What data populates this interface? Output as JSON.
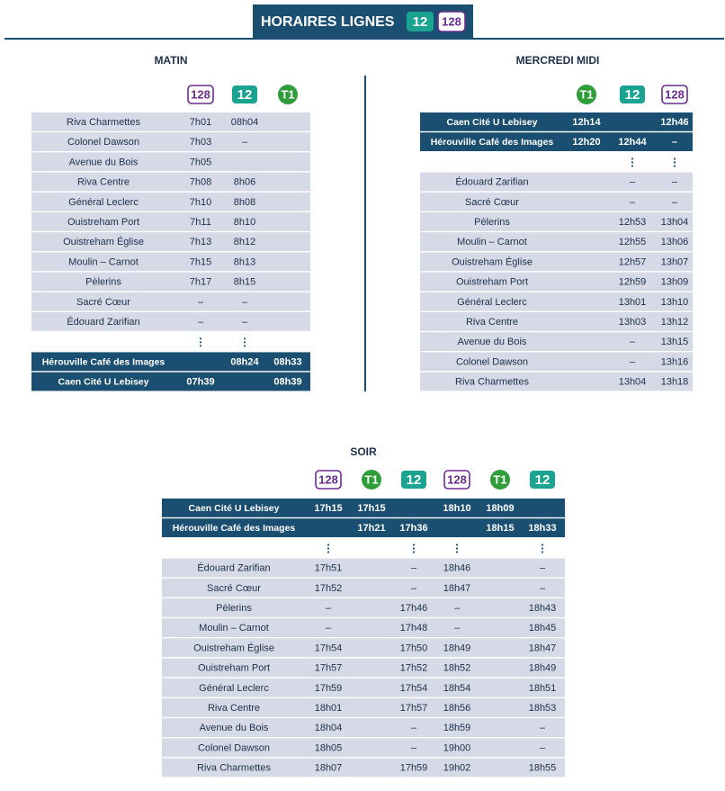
{
  "header": {
    "title": "HORAIRES LIGNES",
    "lines": [
      {
        "label": "12",
        "color": "#1aa391",
        "style": "filled"
      },
      {
        "label": "128",
        "color": "#6b2c8f",
        "style": "outline"
      }
    ]
  },
  "tables": [
    {
      "title": "MATIN",
      "lines": [
        {
          "label": "128",
          "color": "#6b2c8f",
          "style": "outline"
        },
        {
          "label": "12",
          "color": "#1aa391",
          "style": "filled"
        },
        {
          "label": "T1",
          "color": "#2f9e3a",
          "style": "circle"
        }
      ],
      "stops": [
        {
          "stop": "Riva Charmettes",
          "times": [
            "7h01",
            "08h04",
            null
          ]
        },
        {
          "stop": "Colonel Dawson",
          "times": [
            "7h03",
            "–",
            null
          ]
        },
        {
          "stop": "Avenue du Bois",
          "times": [
            "7h05",
            null,
            null
          ]
        },
        {
          "stop": "Riva Centre",
          "times": [
            "7h08",
            "8h06",
            null
          ]
        },
        {
          "stop": "Général Leclerc",
          "times": [
            "7h10",
            "8h08",
            null
          ]
        },
        {
          "stop": "Ouistreham Port",
          "times": [
            "7h11",
            "8h10",
            null
          ]
        },
        {
          "stop": "Ouistreham Église",
          "times": [
            "7h13",
            "8h12",
            null
          ]
        },
        {
          "stop": "Moulin – Carnot",
          "times": [
            "7h15",
            "8h13",
            null
          ]
        },
        {
          "stop": "Pèlerins",
          "times": [
            "7h17",
            "8h15",
            null
          ]
        },
        {
          "stop": "Sacré Cœur",
          "times": [
            "–",
            "–",
            null
          ]
        },
        {
          "stop": "Édouard Zarifian",
          "times": [
            "–",
            "–",
            null
          ]
        }
      ],
      "termini": [
        {
          "stop": "Hérouville Café des Images",
          "times": [
            null,
            "08h24",
            "08h33"
          ]
        },
        {
          "stop": "Caen Cité U Lebisey",
          "times": [
            "07h39",
            null,
            "08h39"
          ]
        }
      ]
    },
    {
      "title": "MERCREDI MIDI",
      "lines": [
        {
          "label": "T1",
          "color": "#2f9e3a",
          "style": "circle"
        },
        {
          "label": "12",
          "color": "#1aa391",
          "style": "filled"
        },
        {
          "label": "128",
          "color": "#6b2c8f",
          "style": "outline"
        }
      ],
      "termini": [
        {
          "stop": "Caen Cité U Lebisey",
          "times": [
            "12h14",
            null,
            "12h46"
          ]
        },
        {
          "stop": "Hérouville Café des Images",
          "times": [
            "12h20",
            "12h44",
            "–"
          ]
        }
      ],
      "stops": [
        {
          "stop": "Édouard Zarifian",
          "times": [
            null,
            "–",
            "–"
          ]
        },
        {
          "stop": "Sacré Cœur",
          "times": [
            null,
            "–",
            "–"
          ]
        },
        {
          "stop": "Pèlerins",
          "times": [
            null,
            "12h53",
            "13h04"
          ]
        },
        {
          "stop": "Moulin – Carnot",
          "times": [
            null,
            "12h55",
            "13h06"
          ]
        },
        {
          "stop": "Ouistreham Église",
          "times": [
            null,
            "12h57",
            "13h07"
          ]
        },
        {
          "stop": "Ouistreham Port",
          "times": [
            null,
            "12h59",
            "13h09"
          ]
        },
        {
          "stop": "Général Leclerc",
          "times": [
            null,
            "13h01",
            "13h10"
          ]
        },
        {
          "stop": "Riva Centre",
          "times": [
            null,
            "13h03",
            "13h12"
          ]
        },
        {
          "stop": "Avenue du Bois",
          "times": [
            null,
            "–",
            "13h15"
          ]
        },
        {
          "stop": "Colonel Dawson",
          "times": [
            null,
            "–",
            "13h16"
          ]
        },
        {
          "stop": "Riva Charmettes",
          "times": [
            null,
            "13h04",
            "13h18"
          ]
        }
      ]
    },
    {
      "title": "SOIR",
      "lines": [
        {
          "label": "128",
          "color": "#6b2c8f",
          "style": "outline"
        },
        {
          "label": "T1",
          "color": "#2f9e3a",
          "style": "circle"
        },
        {
          "label": "12",
          "color": "#1aa391",
          "style": "filled"
        },
        {
          "label": "128",
          "color": "#6b2c8f",
          "style": "outline"
        },
        {
          "label": "T1",
          "color": "#2f9e3a",
          "style": "circle"
        },
        {
          "label": "12",
          "color": "#1aa391",
          "style": "filled"
        }
      ],
      "termini": [
        {
          "stop": "Caen Cité U Lebisey",
          "times": [
            "17h15",
            "17h15",
            null,
            "18h10",
            "18h09",
            null
          ]
        },
        {
          "stop": "Hérouville Café des Images",
          "times": [
            null,
            "17h21",
            "17h36",
            null,
            "18h15",
            "18h33"
          ]
        }
      ],
      "stops": [
        {
          "stop": "Édouard Zarifian",
          "times": [
            "17h51",
            null,
            "–",
            "18h46",
            null,
            "–"
          ]
        },
        {
          "stop": "Sacré Cœur",
          "times": [
            "17h52",
            null,
            "–",
            "18h47",
            null,
            "–"
          ]
        },
        {
          "stop": "Pèlerins",
          "times": [
            "–",
            null,
            "17h46",
            "–",
            null,
            "18h43"
          ]
        },
        {
          "stop": "Moulin – Carnot",
          "times": [
            "–",
            null,
            "17h48",
            "–",
            null,
            "18h45"
          ]
        },
        {
          "stop": "Ouistreham Église",
          "times": [
            "17h54",
            null,
            "17h50",
            "18h49",
            null,
            "18h47"
          ]
        },
        {
          "stop": "Ouistreham Port",
          "times": [
            "17h57",
            null,
            "17h52",
            "18h52",
            null,
            "18h49"
          ]
        },
        {
          "stop": "Général Leclerc",
          "times": [
            "17h59",
            null,
            "17h54",
            "18h54",
            null,
            "18h51"
          ]
        },
        {
          "stop": "Riva Centre",
          "times": [
            "18h01",
            null,
            "17h57",
            "18h56",
            null,
            "18h53"
          ]
        },
        {
          "stop": "Avenue du Bois",
          "times": [
            "18h04",
            null,
            "–",
            "18h59",
            null,
            "–"
          ]
        },
        {
          "stop": "Colonel Dawson",
          "times": [
            "18h05",
            null,
            "–",
            "19h00",
            null,
            "–"
          ]
        },
        {
          "stop": "Riva Charmettes",
          "times": [
            "18h07",
            null,
            "17h59",
            "19h02",
            null,
            "18h55"
          ]
        }
      ]
    }
  ]
}
